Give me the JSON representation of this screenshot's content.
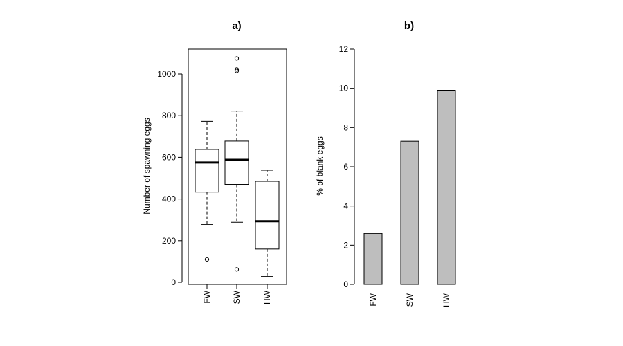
{
  "chart_data": [
    {
      "type": "box",
      "title": "a)",
      "xlabel": "",
      "ylabel": "Number of spawning eggs",
      "ylim": [
        0,
        1100
      ],
      "yticks": [
        0,
        200,
        400,
        600,
        800,
        1000
      ],
      "categories": [
        "FW",
        "SW",
        "HW"
      ],
      "boxes": [
        {
          "whisker_low": 278,
          "q1": 433,
          "median": 575,
          "q3": 638,
          "whisker_high": 773,
          "outliers": [
            110
          ]
        },
        {
          "whisker_low": 288,
          "q1": 470,
          "median": 588,
          "q3": 678,
          "whisker_high": 822,
          "outliers": [
            62,
            1015,
            1022,
            1075
          ]
        },
        {
          "whisker_low": 28,
          "q1": 160,
          "median": 293,
          "q3": 485,
          "whisker_high": 538,
          "outliers": []
        }
      ],
      "grid": false,
      "box_frame": true
    },
    {
      "type": "bar",
      "title": "b)",
      "xlabel": "",
      "ylabel": "% of blank eggs",
      "ylim": [
        0,
        12
      ],
      "yticks": [
        0,
        2,
        4,
        6,
        8,
        10,
        12
      ],
      "categories": [
        "FW",
        "SW",
        "HW"
      ],
      "values": [
        2.6,
        7.3,
        9.9
      ],
      "bar_color": "#bebebe",
      "grid": false
    }
  ]
}
